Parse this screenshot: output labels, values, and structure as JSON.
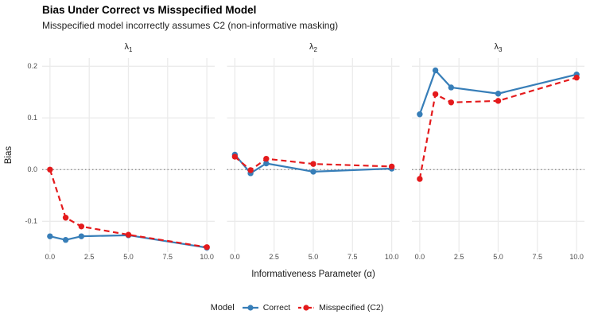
{
  "chart_data": {
    "type": "line",
    "title": "Bias Under Correct vs Misspecified Model",
    "subtitle": "Misspecified model incorrectly assumes C2 (non-informative masking)",
    "xlabel": "Informativeness Parameter (α)",
    "ylabel": "Bias",
    "x": [
      0,
      1,
      2,
      5,
      10
    ],
    "x_ticks": {
      "values": [
        0,
        2.5,
        5,
        7.5,
        10
      ],
      "labels": [
        "0.0",
        "2.5",
        "5.0",
        "7.5",
        "10.0"
      ]
    },
    "y_ticks": {
      "values": [
        0.2,
        0.1,
        0.0,
        -0.1
      ],
      "labels": [
        "0.2",
        "0.1",
        "0.0",
        "-0.1"
      ]
    },
    "xlim": [
      -0.5,
      10.5
    ],
    "ylim": [
      -0.16,
      0.216
    ],
    "grid": "major-only",
    "reference_line_y": 0,
    "facets": [
      {
        "label": "λ",
        "sub": "1",
        "series": [
          {
            "name": "Correct",
            "values": [
              -0.129,
              -0.136,
              -0.129,
              -0.127,
              -0.151
            ]
          },
          {
            "name": "Misspecified (C2)",
            "values": [
              0.0,
              -0.093,
              -0.11,
              -0.126,
              -0.15
            ]
          }
        ]
      },
      {
        "label": "λ",
        "sub": "2",
        "series": [
          {
            "name": "Correct",
            "values": [
              0.029,
              -0.007,
              0.012,
              -0.004,
              0.002
            ]
          },
          {
            "name": "Misspecified (C2)",
            "values": [
              0.025,
              -0.001,
              0.021,
              0.011,
              0.006
            ]
          }
        ]
      },
      {
        "label": "λ",
        "sub": "3",
        "series": [
          {
            "name": "Correct",
            "values": [
              0.107,
              0.192,
              0.159,
              0.147,
              0.184
            ]
          },
          {
            "name": "Misspecified (C2)",
            "values": [
              -0.018,
              0.146,
              0.13,
              0.133,
              0.178
            ]
          }
        ]
      }
    ],
    "legend": {
      "title": "Model",
      "position": "bottom",
      "entries": [
        {
          "label": "Correct",
          "color": "#377EB8",
          "linetype": "solid"
        },
        {
          "label": "Misspecified (C2)",
          "color": "#E41A1C",
          "linetype": "dashed"
        }
      ]
    },
    "colors": {
      "correct": "#377EB8",
      "misspecified": "#E41A1C",
      "grid": "#EBEBEB",
      "reference_line": "#737373",
      "axis_text": "#4D4D4D",
      "text": "#1A1A1A",
      "background": "#FFFFFF"
    }
  }
}
